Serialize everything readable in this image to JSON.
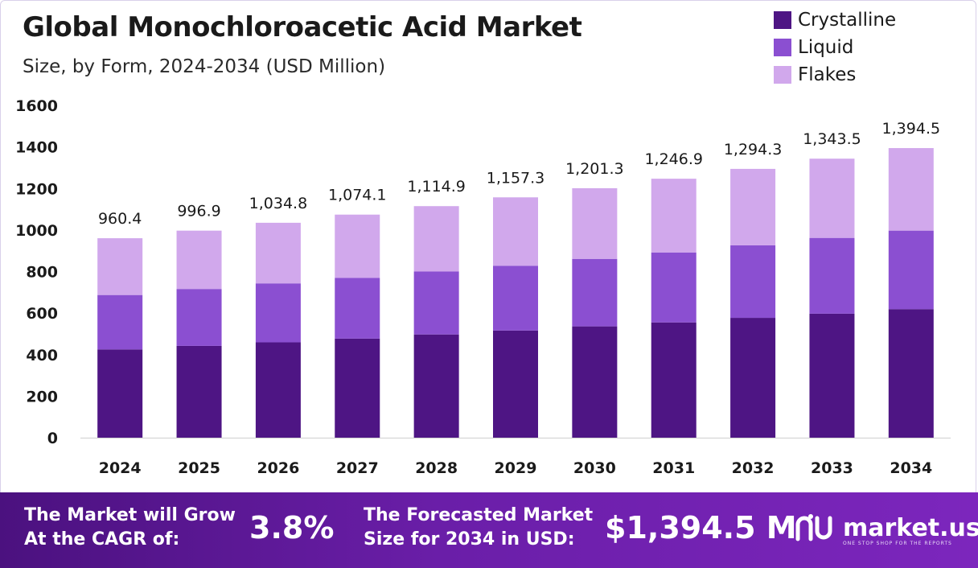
{
  "title": "Global Monochloroacetic Acid Market",
  "subtitle": "Size, by Form, 2024-2034 (USD Million)",
  "colors": {
    "crystalline": "#4e1584",
    "liquid": "#8b4fd1",
    "flakes": "#d1a8ec"
  },
  "legend": [
    {
      "label": "Crystalline",
      "color": "#4e1584"
    },
    {
      "label": "Liquid",
      "color": "#8b4fd1"
    },
    {
      "label": "Flakes",
      "color": "#d1a8ec"
    }
  ],
  "chart_data": {
    "type": "bar",
    "stacked": true,
    "categories": [
      "2024",
      "2025",
      "2026",
      "2027",
      "2028",
      "2029",
      "2030",
      "2031",
      "2032",
      "2033",
      "2034"
    ],
    "series": [
      {
        "name": "Crystalline",
        "values": [
          425,
          442,
          459,
          477,
          497,
          516,
          536,
          555,
          577,
          597,
          619
        ]
      },
      {
        "name": "Liquid",
        "values": [
          262,
          274,
          284,
          292,
          303,
          312,
          325,
          337,
          349,
          365,
          378
        ]
      },
      {
        "name": "Flakes",
        "values": [
          273.4,
          280.9,
          291.8,
          305.1,
          314.9,
          329.3,
          340.3,
          354.9,
          368.3,
          381.5,
          397.5
        ]
      }
    ],
    "totals": [
      "960.4",
      "996.9",
      "1,034.8",
      "1,074.1",
      "1,114.9",
      "1,157.3",
      "1,201.3",
      "1,246.9",
      "1,294.3",
      "1,343.5",
      "1,394.5"
    ],
    "ylim": [
      0,
      1600
    ],
    "yticks": [
      0,
      200,
      400,
      600,
      800,
      1000,
      1200,
      1400,
      1600
    ],
    "legend_position": "top-right",
    "grid": false
  },
  "footer": {
    "cagr_label": "The Market will Grow\nAt the CAGR of:",
    "cagr_value": "3.8%",
    "forecast_label": "The Forecasted Market\nSize for 2034 in USD:",
    "forecast_value": "$1,394.5 M",
    "brand": "market.us",
    "brand_tagline": "ONE STOP SHOP FOR THE REPORTS"
  }
}
